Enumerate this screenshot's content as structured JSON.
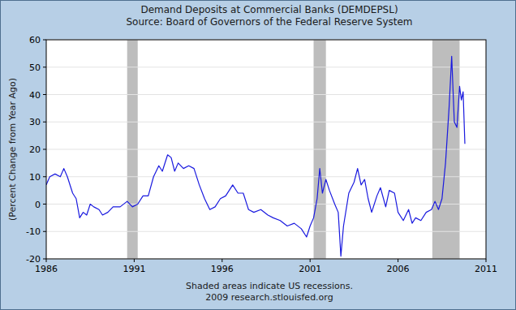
{
  "chart_data": {
    "type": "line",
    "title": "Demand Deposits at Commercial Banks (DEMDEPSL)",
    "subtitle": "Source: Board of Governors of the Federal Reserve System",
    "y_label": "(Percent Change from Year Ago)",
    "footer": [
      "Shaded areas indicate US recessions.",
      "2009 research.stlouisfed.org"
    ],
    "x": [
      1986.0,
      1986.2,
      1986.5,
      1986.8,
      1987.0,
      1987.2,
      1987.5,
      1987.7,
      1987.9,
      1988.1,
      1988.3,
      1988.5,
      1988.7,
      1989.0,
      1989.2,
      1989.5,
      1989.8,
      1990.2,
      1990.6,
      1990.9,
      1991.2,
      1991.5,
      1991.8,
      1992.1,
      1992.4,
      1992.6,
      1992.9,
      1993.1,
      1993.3,
      1993.5,
      1993.8,
      1994.1,
      1994.4,
      1994.7,
      1995.0,
      1995.3,
      1995.6,
      1995.9,
      1996.2,
      1996.6,
      1996.9,
      1997.2,
      1997.5,
      1997.8,
      1998.2,
      1998.6,
      1998.9,
      1999.3,
      1999.7,
      2000.1,
      2000.5,
      2000.8,
      2001.0,
      2001.2,
      2001.4,
      2001.55,
      2001.7,
      2001.9,
      2002.1,
      2002.4,
      2002.6,
      2002.75,
      2002.9,
      2003.2,
      2003.5,
      2003.7,
      2003.9,
      2004.1,
      2004.3,
      2004.5,
      2004.8,
      2005.0,
      2005.3,
      2005.5,
      2005.8,
      2006.0,
      2006.3,
      2006.6,
      2006.8,
      2007.0,
      2007.3,
      2007.6,
      2007.9,
      2008.1,
      2008.3,
      2008.5,
      2008.7,
      2008.9,
      2009.05,
      2009.2,
      2009.35,
      2009.5,
      2009.6,
      2009.7,
      2009.8
    ],
    "values": [
      7,
      10,
      11,
      10,
      13,
      10,
      4,
      2,
      -5,
      -3,
      -4,
      0,
      -1,
      -2,
      -4,
      -3,
      -1,
      -1,
      1,
      -1,
      0,
      3,
      3,
      10,
      14,
      12,
      18,
      17,
      12,
      15,
      13,
      14,
      13,
      7,
      2,
      -2,
      -1,
      2,
      3,
      7,
      4,
      4,
      -2,
      -3,
      -2,
      -4,
      -5,
      -6,
      -8,
      -7,
      -9,
      -12,
      -8,
      -5,
      2,
      13,
      4,
      9,
      5,
      0,
      -3,
      -19,
      -8,
      4,
      8,
      13,
      7,
      9,
      2,
      -3,
      3,
      6,
      -1,
      5,
      4,
      -3,
      -6,
      -2,
      -7,
      -5,
      -6,
      -3,
      -2,
      1,
      -2,
      2,
      15,
      35,
      54,
      30,
      28,
      43,
      38,
      41,
      22
    ],
    "color": "#1a1adf",
    "recessions": [
      {
        "start": 1990.6,
        "end": 1991.2
      },
      {
        "start": 2001.2,
        "end": 2001.9
      },
      {
        "start": 2007.95,
        "end": 2009.5
      }
    ],
    "xlim": [
      1986,
      2011
    ],
    "xticks": [
      1986,
      1991,
      1996,
      2001,
      2006,
      2011
    ],
    "ylim": [
      -20,
      60
    ],
    "yticks": [
      -20,
      -10,
      0,
      10,
      20,
      30,
      40,
      50,
      60
    ],
    "grid": true
  }
}
